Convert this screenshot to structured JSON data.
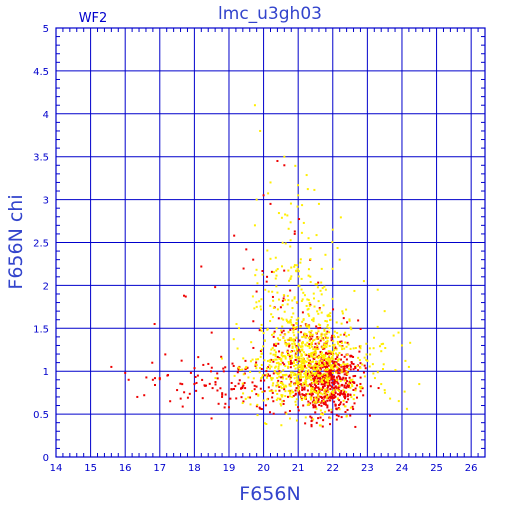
{
  "chart_data": {
    "type": "scatter",
    "title": "lmc_u3gh03",
    "panel_label": "WF2",
    "xlabel": "F656N",
    "ylabel": "F656N chi",
    "xlim": [
      14,
      26.4
    ],
    "ylim": [
      0,
      5
    ],
    "x_ticks": [
      14,
      15,
      16,
      17,
      18,
      19,
      20,
      21,
      22,
      23,
      24,
      25,
      26
    ],
    "y_ticks": [
      "0",
      "0.5",
      "1",
      "1.5",
      "2",
      "2.5",
      "3",
      "3.5",
      "4",
      "4.5",
      "5"
    ],
    "grid": true,
    "colors": {
      "frame": "#0000cc",
      "grid": "#0000cc",
      "text": "#3344cc",
      "series_red": "#ee0000",
      "series_yellow": "#ffee00"
    },
    "series": [
      {
        "color": "#ee0000",
        "clusters": [
          {
            "cx": 21.85,
            "cy": 0.88,
            "sx": 0.45,
            "sy": 0.2,
            "n": 520
          },
          {
            "cx": 21.4,
            "cy": 1.15,
            "sx": 0.55,
            "sy": 0.3,
            "n": 160
          },
          {
            "cx": 20.6,
            "cy": 1.6,
            "sx": 0.45,
            "sy": 0.55,
            "n": 45
          },
          {
            "cx": 19.0,
            "cy": 0.85,
            "sx": 1.1,
            "sy": 0.18,
            "n": 130
          }
        ],
        "points": [
          [
            15.6,
            1.05
          ],
          [
            16.0,
            0.98
          ],
          [
            16.1,
            0.9
          ],
          [
            16.35,
            0.7
          ],
          [
            16.55,
            0.72
          ],
          [
            16.8,
            0.9
          ],
          [
            16.85,
            1.55
          ],
          [
            17.0,
            0.92
          ],
          [
            17.3,
            0.65
          ],
          [
            17.5,
            0.78
          ],
          [
            17.7,
            1.88
          ],
          [
            17.75,
            1.87
          ],
          [
            17.9,
            0.98
          ],
          [
            18.0,
            0.85
          ],
          [
            18.2,
            2.22
          ],
          [
            18.5,
            1.45
          ],
          [
            18.6,
            1.98
          ],
          [
            18.7,
            0.62
          ],
          [
            18.8,
            0.7
          ],
          [
            19.0,
            0.58
          ],
          [
            19.15,
            2.58
          ],
          [
            19.3,
            1.05
          ],
          [
            19.5,
            2.42
          ],
          [
            19.7,
            2.3
          ],
          [
            20.0,
            3.05
          ],
          [
            20.2,
            2.95
          ],
          [
            20.4,
            3.45
          ],
          [
            20.6,
            3.4
          ],
          [
            20.9,
            2.6
          ],
          [
            20.1,
            2.1
          ]
        ]
      },
      {
        "color": "#ffee00",
        "clusters": [
          {
            "cx": 21.3,
            "cy": 1.1,
            "sx": 0.65,
            "sy": 0.3,
            "n": 600
          },
          {
            "cx": 20.9,
            "cy": 1.9,
            "sx": 0.55,
            "sy": 0.55,
            "n": 150
          },
          {
            "cx": 22.8,
            "cy": 1.05,
            "sx": 0.7,
            "sy": 0.25,
            "n": 60
          },
          {
            "cx": 20.2,
            "cy": 1.0,
            "sx": 0.6,
            "sy": 0.2,
            "n": 80
          }
        ],
        "points": [
          [
            19.75,
            4.1
          ],
          [
            19.9,
            3.8
          ],
          [
            20.6,
            3.5
          ],
          [
            20.2,
            3.2
          ],
          [
            19.8,
            3.0
          ],
          [
            21.0,
            3.05
          ],
          [
            21.6,
            2.95
          ],
          [
            19.75,
            2.7
          ],
          [
            21.3,
            2.55
          ],
          [
            22.2,
            2.3
          ],
          [
            22.9,
            2.05
          ],
          [
            23.3,
            1.95
          ],
          [
            23.5,
            1.7
          ],
          [
            23.9,
            1.45
          ],
          [
            24.0,
            1.3
          ],
          [
            24.1,
            1.12
          ],
          [
            24.2,
            1.05
          ],
          [
            24.5,
            0.85
          ],
          [
            23.5,
            0.78
          ],
          [
            23.4,
            0.85
          ],
          [
            22.0,
            2.65
          ],
          [
            21.8,
            1.95
          ]
        ]
      }
    ]
  }
}
